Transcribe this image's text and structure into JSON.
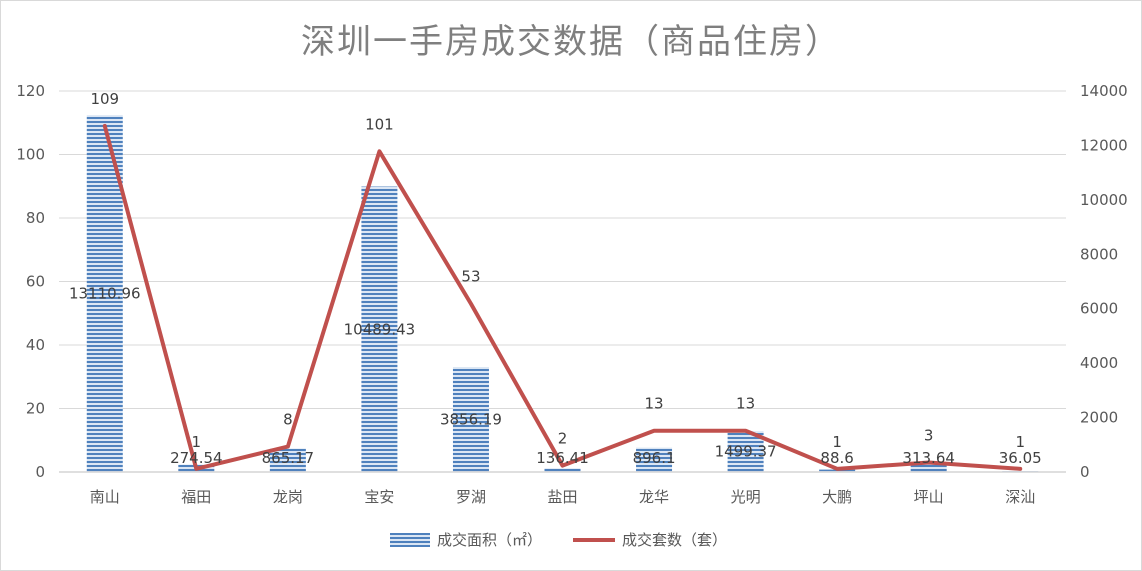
{
  "chart_data": {
    "type": "bar+line",
    "title": "深圳一手房成交数据（商品住房）",
    "categories": [
      "南山",
      "福田",
      "龙岗",
      "宝安",
      "罗湖",
      "盐田",
      "龙华",
      "光明",
      "大鹏",
      "坪山",
      "深汕"
    ],
    "series": [
      {
        "name": "成交面积（㎡）",
        "type": "bar",
        "axis": "right",
        "values": [
          13110.96,
          274.54,
          865.17,
          10489.43,
          3856.19,
          136.41,
          896.1,
          1499.37,
          88.6,
          313.64,
          36.05
        ],
        "labels": [
          "13110.96",
          "274.54",
          "865.17",
          "10489.43",
          "3856.19",
          "136.41",
          "896.1",
          "1499.37",
          "88.6",
          "313.64",
          "36.05"
        ],
        "color": "#5b8bc9"
      },
      {
        "name": "成交套数（套）",
        "type": "line",
        "axis": "left",
        "values": [
          109,
          1,
          8,
          101,
          53,
          2,
          13,
          13,
          1,
          3,
          1
        ],
        "labels": [
          "109",
          "1",
          "8",
          "101",
          "53",
          "2",
          "13",
          "13",
          "1",
          "3",
          "1"
        ],
        "color": "#c0504d"
      }
    ],
    "y_left": {
      "min": 0,
      "max": 120,
      "ticks": [
        "0",
        "20",
        "40",
        "60",
        "80",
        "100",
        "120"
      ]
    },
    "y_right": {
      "min": 0,
      "max": 14000,
      "ticks": [
        "0",
        "2000",
        "4000",
        "6000",
        "8000",
        "10000",
        "12000",
        "14000"
      ]
    },
    "grid": true,
    "legend_position": "bottom"
  }
}
